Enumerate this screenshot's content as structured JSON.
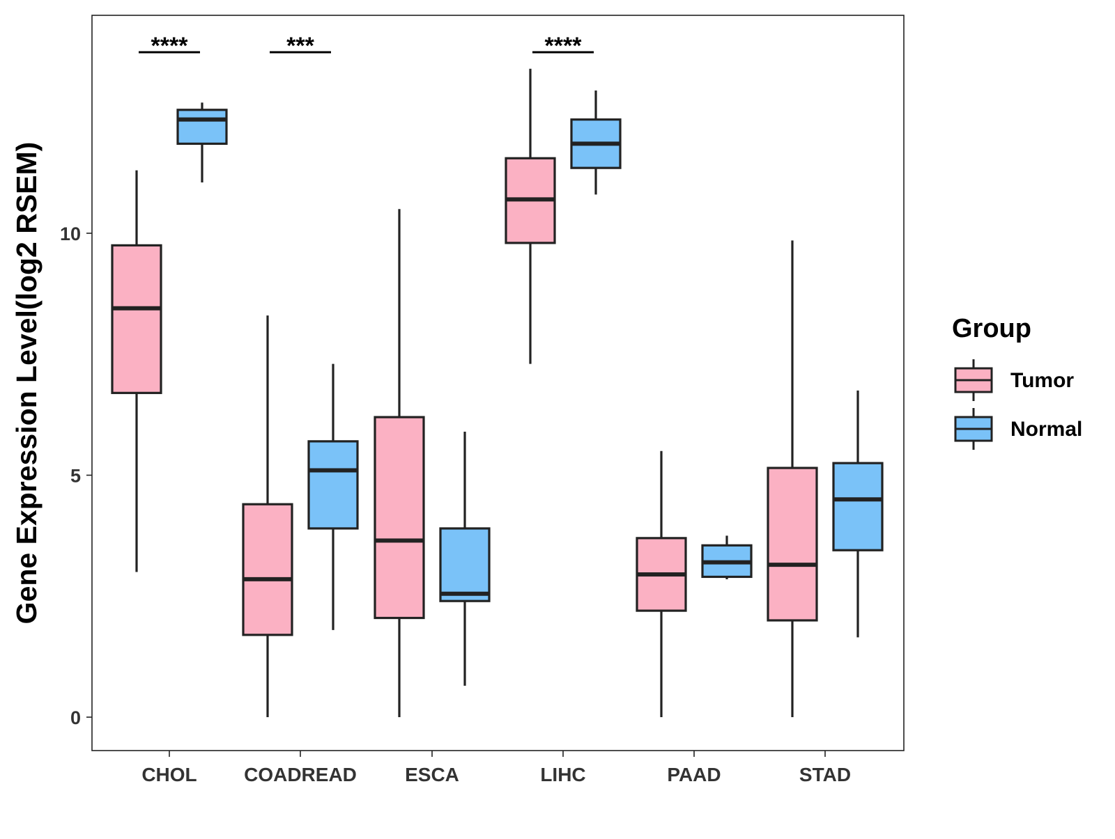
{
  "chart_data": {
    "type": "boxplot",
    "ylabel": "Gene Expression Level(log2 RSEM)",
    "xlabel": "",
    "ylim": [
      -0.7,
      14.5
    ],
    "yticks": [
      0,
      5,
      10
    ],
    "categories": [
      "CHOL",
      "COADREAD",
      "ESCA",
      "LIHC",
      "PAAD",
      "STAD"
    ],
    "legend": {
      "title": "Group",
      "position": "right",
      "entries": [
        {
          "name": "Tumor",
          "color": "#FBB1C3"
        },
        {
          "name": "Normal",
          "color": "#7AC2F8"
        }
      ]
    },
    "series": [
      {
        "name": "Tumor",
        "color": "#FBB1C3",
        "boxes": [
          {
            "category": "CHOL",
            "min": 3.0,
            "q1": 6.7,
            "median": 8.45,
            "q3": 9.75,
            "max": 11.3
          },
          {
            "category": "COADREAD",
            "min": 0.0,
            "q1": 1.7,
            "median": 2.85,
            "q3": 4.4,
            "max": 8.3
          },
          {
            "category": "ESCA",
            "min": 0.0,
            "q1": 2.05,
            "median": 3.65,
            "q3": 6.2,
            "max": 10.5
          },
          {
            "category": "LIHC",
            "min": 7.3,
            "q1": 9.8,
            "median": 10.7,
            "q3": 11.55,
            "max": 13.4
          },
          {
            "category": "PAAD",
            "min": 0.0,
            "q1": 2.2,
            "median": 2.95,
            "q3": 3.7,
            "max": 5.5
          },
          {
            "category": "STAD",
            "min": 0.0,
            "q1": 2.0,
            "median": 3.15,
            "q3": 5.15,
            "max": 9.85
          }
        ]
      },
      {
        "name": "Normal",
        "color": "#7AC2F8",
        "boxes": [
          {
            "category": "CHOL",
            "min": 11.05,
            "q1": 11.85,
            "median": 12.35,
            "q3": 12.55,
            "max": 12.7
          },
          {
            "category": "COADREAD",
            "min": 1.8,
            "q1": 3.9,
            "median": 5.1,
            "q3": 5.7,
            "max": 7.3
          },
          {
            "category": "ESCA",
            "min": 0.65,
            "q1": 2.4,
            "median": 2.55,
            "q3": 3.9,
            "max": 5.9
          },
          {
            "category": "LIHC",
            "min": 10.8,
            "q1": 11.35,
            "median": 11.85,
            "q3": 12.35,
            "max": 12.95
          },
          {
            "category": "PAAD",
            "min": 2.85,
            "q1": 2.9,
            "median": 3.2,
            "q3": 3.55,
            "max": 3.75
          },
          {
            "category": "STAD",
            "min": 1.65,
            "q1": 3.45,
            "median": 4.5,
            "q3": 5.25,
            "max": 6.75
          }
        ]
      }
    ],
    "annotations": [
      {
        "category": "CHOL",
        "text": "****"
      },
      {
        "category": "COADREAD",
        "text": "***"
      },
      {
        "category": "LIHC",
        "text": "****"
      }
    ]
  }
}
